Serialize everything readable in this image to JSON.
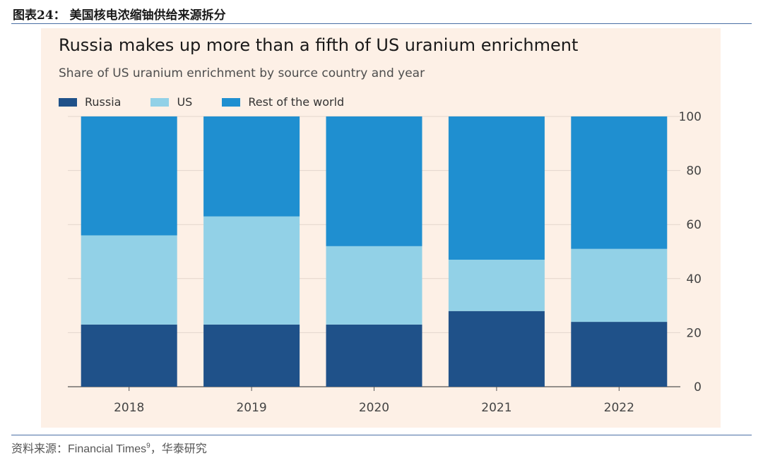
{
  "header": {
    "title": "图表24：  美国核电浓缩铀供给来源拆分"
  },
  "footer": {
    "source_prefix": "资料来源：Financial Times",
    "source_sup": "9",
    "source_suffix": "，华泰研究"
  },
  "colors": {
    "panel_bg": "#fdf0e6",
    "russia": "#1f5189",
    "us": "#92d1e7",
    "rest": "#1f8fd0",
    "grid": "#e3d6cc",
    "axis": "#555555"
  },
  "chart_data": {
    "type": "bar",
    "stacked": true,
    "title": "Russia makes up more than a fifth of US uranium enrichment",
    "subtitle": "Share of US uranium enrichment by source country and year",
    "categories": [
      "2018",
      "2019",
      "2020",
      "2021",
      "2022"
    ],
    "series": [
      {
        "name": "Russia",
        "color": "#1f5189",
        "values": [
          23,
          23,
          23,
          28,
          24
        ]
      },
      {
        "name": "US",
        "color": "#92d1e7",
        "values": [
          33,
          40,
          29,
          19,
          27
        ]
      },
      {
        "name": "Rest of the world",
        "color": "#1f8fd0",
        "values": [
          44,
          37,
          48,
          53,
          49
        ]
      }
    ],
    "ylim": [
      0,
      100
    ],
    "yticks": [
      "0",
      "20",
      "40",
      "60",
      "80",
      "100"
    ],
    "y_axis_position": "right",
    "legend_position": "top-left",
    "grid": true
  }
}
